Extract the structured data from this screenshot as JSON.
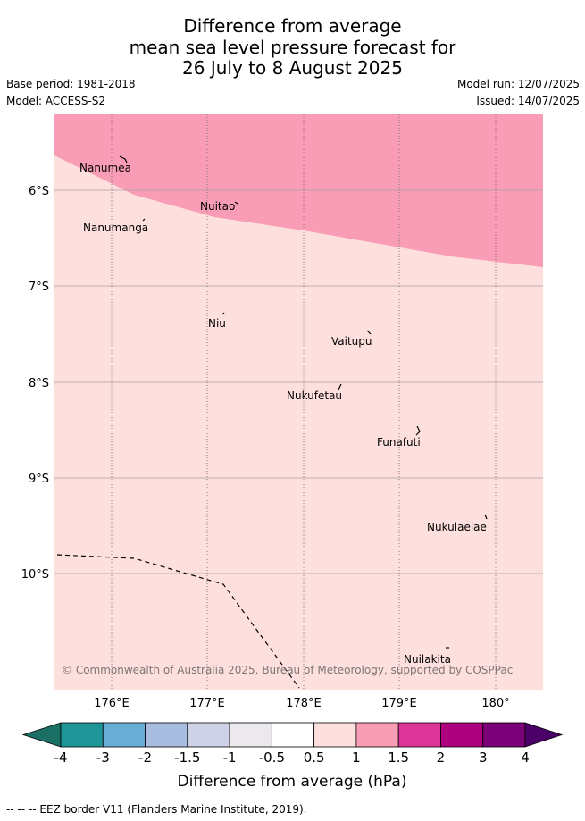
{
  "title": {
    "line1": "Difference from average",
    "line2": "mean sea level pressure forecast for",
    "line3": "26 July to 8 August 2025"
  },
  "meta": {
    "base_period": "Base period: 1981-2018",
    "model": "Model: ACCESS-S2",
    "model_run": "Model run: 12/07/2025",
    "issued": "Issued: 14/07/2025"
  },
  "map": {
    "lat_labels": [
      "6°S",
      "7°S",
      "8°S",
      "9°S",
      "10°S"
    ],
    "lon_labels": [
      "176°E",
      "177°E",
      "178°E",
      "179°E",
      "180°"
    ],
    "islands": [
      "Nanumea",
      "Nuitao",
      "Nanumanga",
      "Niu",
      "Vaitupu",
      "Nukufetau",
      "Funafuti",
      "Nukulaelae",
      "Nuilakita"
    ],
    "copyright": "© Commonwealth of Australia 2025, Bureau of Meteorology, supported by COSPPac"
  },
  "colorbar": {
    "ticks": [
      "-4",
      "-3",
      "-2",
      "-1.5",
      "-1",
      "-0.5",
      "0.5",
      "1",
      "1.5",
      "2",
      "3",
      "4"
    ],
    "colors": [
      "#1a6f65",
      "#1f9598",
      "#6aaed6",
      "#a8bddf",
      "#cfd1e7",
      "#ebe9ee",
      "#ffffff",
      "#fde0de",
      "#f99db6",
      "#dd3497",
      "#ae017e",
      "#7a0177",
      "#4a0066"
    ],
    "label": "Difference from average (hPa)"
  },
  "legend": {
    "eez": "--  --  -- EEZ border V11 (Flanders Marine Institute, 2019)."
  }
}
